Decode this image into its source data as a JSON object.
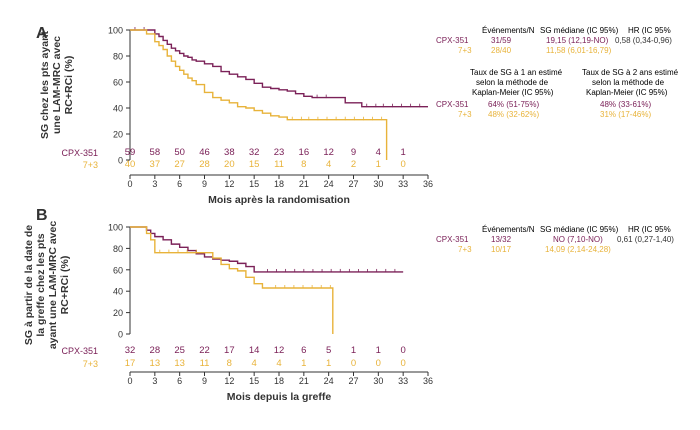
{
  "colors": {
    "cpx": "#7b2158",
    "ref": "#e8b33a",
    "axis": "#333333",
    "text": "#333333"
  },
  "chart_data": [
    {
      "type": "line",
      "panel": "A",
      "ylabel": "SG chez les pts ayant une LAM-MRC avec RC+RCi (%)",
      "xlabel": "Mois après la randomisation",
      "xlim": [
        0,
        36
      ],
      "ylim": [
        0,
        100
      ],
      "xticks": [
        0,
        3,
        6,
        9,
        12,
        15,
        18,
        21,
        24,
        27,
        30,
        33,
        36
      ],
      "yticks": [
        0,
        20,
        40,
        60,
        80,
        100
      ],
      "series": [
        {
          "name": "CPX-351",
          "color": "#7b2158",
          "x": [
            0,
            2,
            3,
            3.5,
            4,
            4.5,
            5,
            5.5,
            6,
            6.5,
            7,
            7.5,
            8,
            9,
            10,
            11,
            12,
            13,
            14,
            15,
            16,
            17,
            18,
            19,
            20,
            21,
            22,
            24,
            26,
            28,
            30,
            36
          ],
          "y": [
            100,
            100,
            97,
            95,
            92,
            89,
            86,
            84,
            82,
            80,
            79,
            77,
            76,
            74,
            72,
            68,
            66,
            64,
            62,
            59,
            56,
            55,
            54,
            53,
            51,
            49,
            48,
            48,
            44,
            41,
            41,
            41
          ]
        },
        {
          "name": "7+3",
          "color": "#e8b33a",
          "x": [
            0,
            1,
            2,
            3,
            3.5,
            4,
            4.5,
            5,
            5.5,
            6,
            6.5,
            7,
            7.5,
            8,
            9,
            10,
            11,
            12,
            13,
            14,
            15,
            16,
            17,
            18,
            19,
            21,
            31,
            31
          ],
          "y": [
            100,
            100,
            97,
            91,
            88,
            85,
            80,
            76,
            72,
            69,
            66,
            63,
            61,
            58,
            52,
            48,
            46,
            44,
            41,
            40,
            38,
            36,
            34,
            33,
            31,
            31,
            31,
            0
          ]
        }
      ],
      "at_risk": {
        "CPX-351": [
          59,
          58,
          50,
          46,
          38,
          32,
          23,
          16,
          12,
          9,
          4,
          1
        ],
        "7+3": [
          40,
          37,
          27,
          28,
          20,
          15,
          11,
          8,
          4,
          2,
          1,
          0
        ]
      },
      "table": {
        "h_events": "Événements/N",
        "h_median": "SG médiane (IC 95%)",
        "h_hr": "HR (IC 95%",
        "rows": [
          {
            "name": "CPX-351",
            "events": "31/59",
            "median": "19,15 (12,19-NO)",
            "hr": "0,58 (0,34-0,96)"
          },
          {
            "name": "7+3",
            "events": "28/40",
            "median": "11,58 (6,01-16,79)"
          }
        ],
        "h_1y": [
          "Taux de SG à 1 an estimé",
          "selon la méthode de",
          "Kaplan-Meier (IC 95%)"
        ],
        "h_2y": [
          "Taux de SG à 2 ans estimé",
          "selon la méthode de",
          "Kaplan-Meier (IC 95%)"
        ],
        "rates": [
          {
            "name": "CPX-351",
            "y1": "64% (51-75%)",
            "y2": "48% (33-61%)"
          },
          {
            "name": "7+3",
            "y1": "48% (32-62%)",
            "y2": "31% (17-46%)"
          }
        ]
      }
    },
    {
      "type": "line",
      "panel": "B",
      "ylabel": "SG à partir de la date de la greffe chez les pts ayant une LAM-MRC avec RC+RCi (%)",
      "xlabel": "Mois depuis la greffe",
      "xlim": [
        0,
        36
      ],
      "ylim": [
        0,
        100
      ],
      "xticks": [
        0,
        3,
        6,
        9,
        12,
        15,
        18,
        21,
        24,
        27,
        30,
        33,
        36
      ],
      "yticks": [
        0,
        20,
        40,
        60,
        80,
        100
      ],
      "series": [
        {
          "name": "CPX-351",
          "color": "#7b2158",
          "x": [
            0,
            1.5,
            2,
            2.5,
            3,
            4,
            5,
            6,
            7,
            8,
            9,
            10,
            11,
            12,
            13,
            14,
            15,
            16,
            33
          ],
          "y": [
            100,
            100,
            97,
            94,
            91,
            88,
            84,
            81,
            78,
            75,
            72,
            70,
            69,
            68,
            66,
            63,
            58,
            58,
            58
          ]
        },
        {
          "name": "7+3",
          "color": "#e8b33a",
          "x": [
            0,
            1.5,
            2,
            2.5,
            3,
            9,
            10,
            11,
            12,
            13,
            14,
            15,
            16,
            17,
            24.5,
            24.5
          ],
          "y": [
            100,
            100,
            94,
            88,
            76,
            76,
            71,
            65,
            61,
            59,
            53,
            47,
            43,
            43,
            43,
            0
          ]
        }
      ],
      "at_risk": {
        "CPX-351": [
          32,
          28,
          25,
          22,
          17,
          14,
          12,
          6,
          5,
          1,
          1,
          0
        ],
        "7+3": [
          17,
          13,
          13,
          11,
          8,
          4,
          4,
          1,
          1,
          0,
          0,
          0
        ]
      },
      "table": {
        "h_events": "Événements/N",
        "h_median": "SG médiane (IC 95%)",
        "h_hr": "HR (IC 95%",
        "rows": [
          {
            "name": "CPX-351",
            "events": "13/32",
            "median": "NO (7,10-NO)",
            "hr": "0,61 (0,27-1,40)"
          },
          {
            "name": "7+3",
            "events": "10/17",
            "median": "14,09 (2,14-24,28)"
          }
        ]
      }
    }
  ],
  "panel_labels": [
    "A",
    "B"
  ]
}
